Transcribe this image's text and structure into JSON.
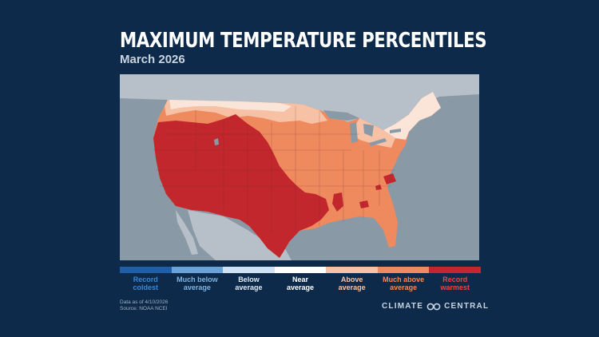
{
  "title": "MAXIMUM TEMPERATURE PERCENTILES",
  "subtitle": "March 2026",
  "legend": [
    {
      "label": "Record coldest",
      "color": "#1f5fa8",
      "text_color": "#3b86d4"
    },
    {
      "label": "Much below average",
      "color": "#6aa3d8",
      "text_color": "#7fb2e0"
    },
    {
      "label": "Below average",
      "color": "#cfe2f3",
      "text_color": "#dfe9f4"
    },
    {
      "label": "Near average",
      "color": "#ffffff",
      "text_color": "#ffffff"
    },
    {
      "label": "Above average",
      "color": "#f7c1a5",
      "text_color": "#f6c4a8"
    },
    {
      "label": "Much above average",
      "color": "#ef8a5e",
      "text_color": "#f08a5d"
    },
    {
      "label": "Record warmest",
      "color": "#c1272d",
      "text_color": "#e2474c"
    }
  ],
  "footnote": {
    "date_line": "Data as of 4/10/2026",
    "source_line": "Source: NOAA NCEI"
  },
  "brand": {
    "left": "CLIMATE",
    "right": "CENTRAL"
  },
  "map_colors": {
    "ocean": "#8a99a6",
    "land_other": "#b7c0c8",
    "lakes": "#8a99a6"
  }
}
